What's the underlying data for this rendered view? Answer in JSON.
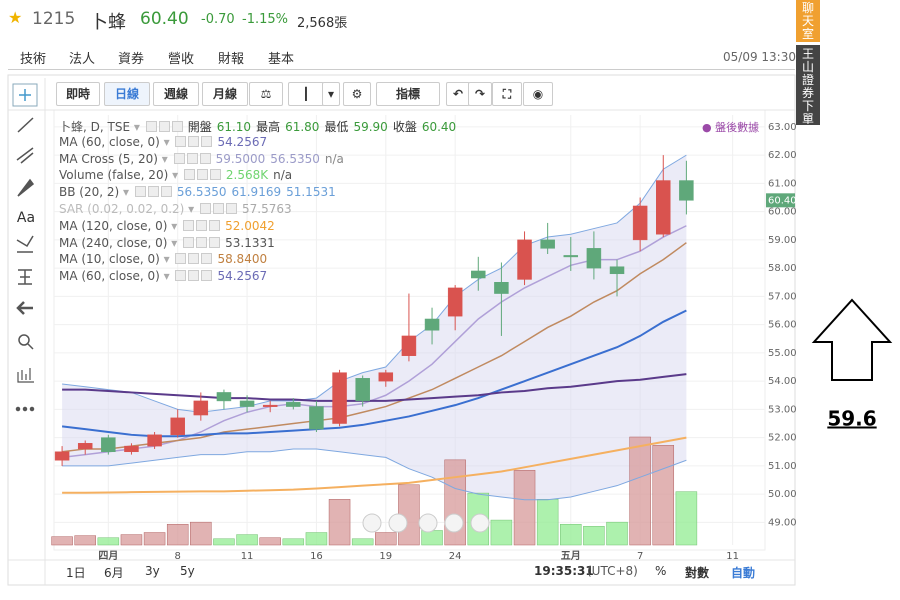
{
  "header": {
    "code": "1215",
    "name": "卜蜂",
    "price": "60.40",
    "change": "-0.70",
    "change_pct": "-1.15%",
    "volume": "2,568張",
    "datetime": "05/09 13:30"
  },
  "tabs": [
    "技術",
    "法人",
    "資券",
    "營收",
    "財報",
    "基本"
  ],
  "side_tabs": [
    "聊天室",
    "王山證券下單"
  ],
  "toolbar": [
    "即時",
    "日線",
    "週線",
    "月線",
    "指標"
  ],
  "tools_text": "Aa",
  "after_hours": "盤後數據",
  "legend": [
    {
      "label": "卜蜂, D, TSE",
      "parts": [
        {
          "text": "開盤",
          "color": "#333"
        },
        {
          "text": "61.10",
          "color": "#3a9a3a"
        },
        {
          "text": "最高",
          "color": "#333"
        },
        {
          "text": "61.80",
          "color": "#3a9a3a"
        },
        {
          "text": "最低",
          "color": "#333"
        },
        {
          "text": "59.90",
          "color": "#3a9a3a"
        },
        {
          "text": "收盤",
          "color": "#333"
        },
        {
          "text": "60.40",
          "color": "#3a9a3a"
        }
      ]
    },
    {
      "label": "MA (60, close, 0)",
      "parts": [
        {
          "text": "54.2567",
          "color": "#6b6bb5"
        }
      ]
    },
    {
      "label": "MA Cross (5, 20)",
      "parts": [
        {
          "text": "59.5000",
          "color": "#9b9bc8"
        },
        {
          "text": "56.5350",
          "color": "#9b9bc8"
        },
        {
          "text": "n/a",
          "color": "#888"
        }
      ]
    },
    {
      "label": "Volume (false, 20)",
      "parts": [
        {
          "text": "2.568K",
          "color": "#6fd46f"
        },
        {
          "text": "n/a",
          "color": "#555"
        }
      ]
    },
    {
      "label": "BB (20, 2)",
      "parts": [
        {
          "text": "56.5350",
          "color": "#6a9fd8"
        },
        {
          "text": "61.9169",
          "color": "#6a9fd8"
        },
        {
          "text": "51.1531",
          "color": "#6a9fd8"
        }
      ]
    },
    {
      "label": "SAR (0.02, 0.02, 0.2)",
      "parts": [
        {
          "text": "57.5763",
          "color": "#aaa"
        }
      ],
      "muted": true
    },
    {
      "label": "MA (120, close, 0)",
      "parts": [
        {
          "text": "52.0042",
          "color": "#f0a030"
        }
      ]
    },
    {
      "label": "MA (240, close, 0)",
      "parts": [
        {
          "text": "53.1331",
          "color": "#555"
        }
      ]
    },
    {
      "label": "MA (10, close, 0)",
      "parts": [
        {
          "text": "58.8400",
          "color": "#c08040"
        }
      ]
    },
    {
      "label": "MA (60, close, 0)",
      "parts": [
        {
          "text": "54.2567",
          "color": "#6b6bb5"
        }
      ]
    }
  ],
  "chart": {
    "type": "candlestick",
    "ylim": [
      48.2,
      63.42
    ],
    "yticks": [
      {
        "value": 49,
        "label": "49.00"
      },
      {
        "value": 50,
        "label": "50.00"
      },
      {
        "value": 51,
        "label": "51.00"
      },
      {
        "value": 52,
        "label": "52.00"
      },
      {
        "value": 53,
        "label": "53.00"
      },
      {
        "value": 54,
        "label": "54.00"
      },
      {
        "value": 55,
        "label": "55.00"
      },
      {
        "value": 56,
        "label": "56.00"
      },
      {
        "value": 57,
        "label": "57.00"
      },
      {
        "value": 58,
        "label": "58.00"
      },
      {
        "value": 59,
        "label": "59.00"
      },
      {
        "value": 60,
        "label": "60.00"
      },
      {
        "value": 61,
        "label": "61.00"
      },
      {
        "value": 62,
        "label": "62.00"
      },
      {
        "value": 63,
        "label": "63.00"
      }
    ],
    "xlim": [
      -0.35,
      30.4
    ],
    "xticks": [
      {
        "value": 2,
        "label": "四月"
      },
      {
        "value": 5,
        "label": "8"
      },
      {
        "value": 8,
        "label": "11"
      },
      {
        "value": 11,
        "label": "16"
      },
      {
        "value": 14,
        "label": "19"
      },
      {
        "value": 17,
        "label": "24"
      },
      {
        "value": 22,
        "label": "五月"
      },
      {
        "value": 25,
        "label": "7"
      },
      {
        "value": 29,
        "label": "11"
      }
    ],
    "up_color": "#d9534f",
    "down_color": "#5fa87a",
    "candles": [
      {
        "o": 51.2,
        "h": 51.7,
        "l": 51.0,
        "c": 51.5
      },
      {
        "o": 51.6,
        "h": 51.9,
        "l": 51.4,
        "c": 51.8
      },
      {
        "o": 52.0,
        "h": 52.1,
        "l": 51.4,
        "c": 51.5
      },
      {
        "o": 51.5,
        "h": 51.8,
        "l": 51.4,
        "c": 51.7
      },
      {
        "o": 51.7,
        "h": 52.2,
        "l": 51.6,
        "c": 52.1
      },
      {
        "o": 52.1,
        "h": 53.0,
        "l": 52.0,
        "c": 52.7
      },
      {
        "o": 52.8,
        "h": 53.6,
        "l": 52.6,
        "c": 53.3
      },
      {
        "o": 53.6,
        "h": 53.7,
        "l": 53.0,
        "c": 53.3
      },
      {
        "o": 53.3,
        "h": 53.5,
        "l": 52.9,
        "c": 53.1
      },
      {
        "o": 53.1,
        "h": 53.3,
        "l": 52.9,
        "c": 53.15
      },
      {
        "o": 53.25,
        "h": 53.4,
        "l": 53.0,
        "c": 53.1
      },
      {
        "o": 53.1,
        "h": 53.3,
        "l": 52.2,
        "c": 52.3
      },
      {
        "o": 52.5,
        "h": 54.4,
        "l": 52.4,
        "c": 54.3
      },
      {
        "o": 54.1,
        "h": 54.2,
        "l": 53.1,
        "c": 53.3
      },
      {
        "o": 54.0,
        "h": 54.4,
        "l": 53.8,
        "c": 54.3
      },
      {
        "o": 54.9,
        "h": 57.1,
        "l": 54.7,
        "c": 55.6
      },
      {
        "o": 56.2,
        "h": 56.6,
        "l": 55.3,
        "c": 55.8
      },
      {
        "o": 56.3,
        "h": 57.4,
        "l": 55.8,
        "c": 57.3
      },
      {
        "o": 57.9,
        "h": 58.4,
        "l": 57.2,
        "c": 57.65
      },
      {
        "o": 57.5,
        "h": 58.2,
        "l": 55.6,
        "c": 57.1
      },
      {
        "o": 57.6,
        "h": 59.3,
        "l": 57.4,
        "c": 59.0
      },
      {
        "o": 59.0,
        "h": 59.6,
        "l": 58.5,
        "c": 58.7
      },
      {
        "o": 58.45,
        "h": 59.1,
        "l": 57.9,
        "c": 58.4
      },
      {
        "o": 58.7,
        "h": 59.3,
        "l": 57.6,
        "c": 58.0
      },
      {
        "o": 58.05,
        "h": 58.3,
        "l": 57.0,
        "c": 57.8
      },
      {
        "o": 59.0,
        "h": 60.5,
        "l": 58.6,
        "c": 60.2
      },
      {
        "o": 59.2,
        "h": 62.0,
        "l": 59.1,
        "c": 61.1
      },
      {
        "o": 61.1,
        "h": 61.8,
        "l": 59.9,
        "c": 60.4
      }
    ],
    "volume": [
      400,
      450,
      350,
      500,
      600,
      1000,
      1100,
      300,
      500,
      350,
      300,
      600,
      2200,
      300,
      600,
      2900,
      700,
      4100,
      2500,
      1200,
      3600,
      2200,
      1000,
      900,
      1100,
      5200,
      4800,
      2568
    ],
    "lines": [
      {
        "color": "#7fa8e0",
        "width": 1,
        "values": [
          53.9,
          53.8,
          53.7,
          53.6,
          53.3,
          53.0,
          52.9,
          53.0,
          53.1,
          53.3,
          53.3,
          53.4,
          54.0,
          54.3,
          54.5,
          55.4,
          56.0,
          57.0,
          57.6,
          58.0,
          58.8,
          59.1,
          59.2,
          59.4,
          59.6,
          60.3,
          61.5,
          62.0
        ]
      },
      {
        "color": "#7fa8e0",
        "width": 1,
        "values": [
          51.0,
          51.0,
          51.0,
          51.1,
          51.2,
          51.3,
          51.4,
          51.4,
          51.5,
          51.5,
          51.6,
          51.6,
          51.5,
          51.4,
          51.3,
          50.9,
          50.6,
          50.2,
          50.0,
          49.9,
          49.8,
          49.8,
          49.9,
          50.1,
          50.3,
          50.6,
          50.9,
          51.2
        ]
      },
      {
        "color": "#b0a0d8",
        "width": 1.5,
        "values": [
          51.3,
          51.4,
          51.5,
          51.6,
          51.7,
          51.9,
          52.2,
          52.6,
          52.9,
          53.1,
          53.2,
          53.1,
          53.1,
          53.2,
          53.5,
          54.0,
          54.6,
          55.4,
          56.2,
          56.8,
          57.3,
          57.7,
          58.1,
          58.3,
          58.3,
          58.6,
          59.1,
          59.5
        ]
      },
      {
        "color": "#c08a60",
        "width": 1.5,
        "values": [
          51.5,
          51.6,
          51.6,
          51.7,
          51.8,
          51.9,
          52.0,
          52.2,
          52.3,
          52.4,
          52.5,
          52.6,
          52.7,
          52.9,
          53.1,
          53.4,
          53.7,
          54.1,
          54.5,
          54.9,
          55.4,
          55.9,
          56.3,
          56.8,
          57.2,
          57.8,
          58.3,
          58.9
        ]
      },
      {
        "color": "#3a6fd0",
        "width": 2,
        "values": [
          52.4,
          52.3,
          52.2,
          52.1,
          52.05,
          52.05,
          52.1,
          52.15,
          52.15,
          52.2,
          52.25,
          52.3,
          52.35,
          52.45,
          52.6,
          52.75,
          52.95,
          53.15,
          53.4,
          53.7,
          54.0,
          54.3,
          54.6,
          54.9,
          55.2,
          55.6,
          56.1,
          56.5
        ]
      },
      {
        "color": "#5a3a8a",
        "width": 2,
        "values": [
          53.7,
          53.7,
          53.65,
          53.6,
          53.55,
          53.5,
          53.45,
          53.4,
          53.4,
          53.35,
          53.35,
          53.3,
          53.3,
          53.3,
          53.3,
          53.35,
          53.4,
          53.45,
          53.5,
          53.6,
          53.65,
          53.75,
          53.8,
          53.9,
          54.0,
          54.05,
          54.15,
          54.25
        ]
      },
      {
        "color": "#f5b060",
        "width": 2,
        "values": [
          50.05,
          50.05,
          50.06,
          50.07,
          50.08,
          50.09,
          50.1,
          50.1,
          50.12,
          50.14,
          50.16,
          50.2,
          50.25,
          50.3,
          50.35,
          50.4,
          50.5,
          50.6,
          50.7,
          50.8,
          50.95,
          51.1,
          51.25,
          51.4,
          51.55,
          51.7,
          51.85,
          52.0
        ]
      }
    ]
  },
  "bottom": {
    "ranges": [
      "1日",
      "6月",
      "3y",
      "5y"
    ],
    "time": "19:35:31",
    "tz": "(UTC+8)",
    "pct": "%",
    "log": "對數",
    "auto": "自動"
  },
  "annotation": "59.6"
}
